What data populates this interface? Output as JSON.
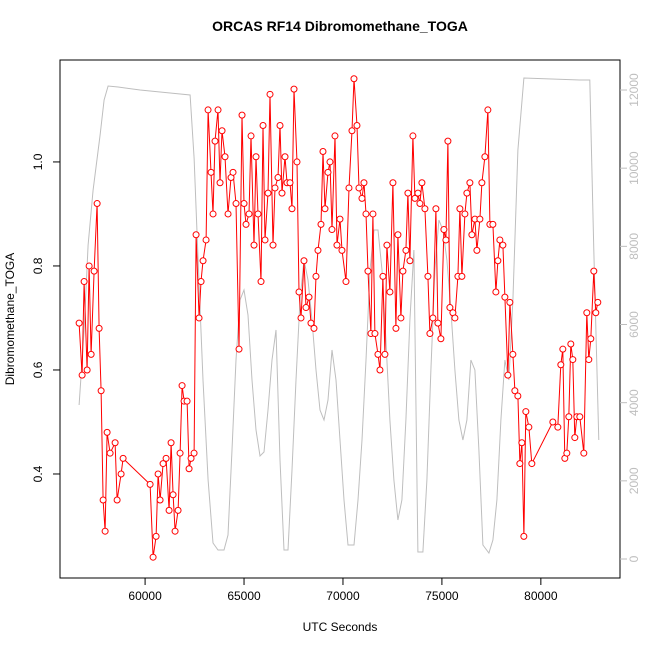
{
  "chart_data": {
    "type": "line",
    "title": "ORCAS RF14 Dibromomethane_TOGA",
    "xlabel": "UTC Seconds",
    "ylabel": "Dibromomethane_TOGA",
    "xlim": [
      55700,
      84000
    ],
    "xticks": [
      60000,
      65000,
      70000,
      75000,
      80000
    ],
    "ylim": [
      0.2,
      1.196
    ],
    "yticks": [
      0.4,
      0.6,
      0.8,
      {
        "value": 1,
        "label": "1.0"
      }
    ],
    "y2lim": [
      -486,
      12768
    ],
    "y2ticks": [
      0,
      2000,
      4000,
      6000,
      8000,
      10000,
      12000
    ],
    "series": [
      {
        "color": "#bebebe",
        "axis": "y2",
        "x": [
          56667,
          56919,
          57121,
          57374,
          57727,
          57929,
          58131,
          58636,
          59747,
          61263,
          62273,
          62475,
          62677,
          62929,
          63182,
          63434,
          63687,
          63990,
          64192,
          64394,
          64596,
          64798,
          65000,
          65202,
          65404,
          65606,
          65808,
          66010,
          66212,
          66414,
          66616,
          66818,
          67020,
          67222,
          67424,
          67626,
          67828,
          68030,
          68232,
          68434,
          68636,
          68838,
          69040,
          69242,
          69444,
          69646,
          69848,
          70051,
          70253,
          70556,
          70758,
          70960,
          71162,
          71364,
          71566,
          71768,
          71970,
          72172,
          72374,
          72576,
          72778,
          72980,
          73182,
          73384,
          73586,
          73788,
          74040,
          74242,
          74444,
          74646,
          74848,
          75051,
          75253,
          75455,
          75657,
          75859,
          76061,
          76263,
          76465,
          76667,
          76869,
          77071,
          77374,
          77576,
          77778,
          77980,
          78182,
          78384,
          78586,
          78838,
          79141,
          81970,
          82475,
          82677,
          82929
        ],
        "values": [
          3941,
          5860,
          8035,
          9442,
          10850,
          11745,
          12103,
          12078,
          12001,
          11924,
          11873,
          10261,
          7651,
          4580,
          2021,
          409,
          230,
          230,
          614,
          2789,
          5092,
          6627,
          6883,
          6244,
          4580,
          3301,
          2636,
          2738,
          3813,
          5092,
          5860,
          2533,
          230,
          230,
          2277,
          4580,
          6627,
          7651,
          7139,
          6116,
          4836,
          3813,
          3557,
          4069,
          5348,
          4580,
          3045,
          1510,
          358,
          358,
          1510,
          3045,
          5092,
          7395,
          8419,
          8419,
          7395,
          5604,
          3557,
          2021,
          998,
          1510,
          3557,
          6116,
          7907,
          179,
          179,
          2021,
          4836,
          7395,
          8675,
          8419,
          7651,
          6372,
          4836,
          3557,
          3045,
          3557,
          5092,
          4836,
          2789,
          358,
          154,
          486,
          1510,
          3557,
          5092,
          4580,
          6627,
          10466,
          12308,
          12257,
          12257,
          7907,
          3045
        ]
      },
      {
        "color": "#ff0000",
        "marker": "circle",
        "x": [
          56667,
          56818,
          56919,
          57071,
          57172,
          57273,
          57424,
          57576,
          57677,
          57778,
          57879,
          57980,
          58081,
          58232,
          58485,
          58586,
          58788,
          58889,
          60253,
          60404,
          60556,
          60657,
          60758,
          60909,
          61061,
          61212,
          61313,
          61414,
          61515,
          61667,
          61768,
          61869,
          61970,
          62121,
          62222,
          62323,
          62475,
          62576,
          62727,
          62828,
          62929,
          63081,
          63182,
          63333,
          63434,
          63535,
          63687,
          63788,
          63889,
          64040,
          64192,
          64343,
          64444,
          64596,
          64747,
          64899,
          65000,
          65101,
          65253,
          65354,
          65505,
          65606,
          65707,
          65859,
          65960,
          66061,
          66212,
          66313,
          66465,
          66566,
          66717,
          66818,
          66919,
          67071,
          67172,
          67323,
          67424,
          67525,
          67677,
          67778,
          67879,
          68030,
          68131,
          68283,
          68384,
          68535,
          68636,
          68737,
          68889,
          68990,
          69091,
          69242,
          69343,
          69444,
          69596,
          69697,
          69848,
          69949,
          70152,
          70303,
          70455,
          70556,
          70707,
          70808,
          70960,
          71061,
          71162,
          71263,
          71414,
          71515,
          71616,
          71768,
          71869,
          72020,
          72121,
          72222,
          72374,
          72525,
          72677,
          72778,
          72929,
          73030,
          73182,
          73283,
          73384,
          73535,
          73636,
          73788,
          73889,
          73990,
          74141,
          74293,
          74394,
          74545,
          74697,
          74798,
          74949,
          75101,
          75202,
          75303,
          75404,
          75556,
          75657,
          75808,
          75909,
          76010,
          76162,
          76263,
          76414,
          76515,
          76667,
          76768,
          76919,
          77020,
          77172,
          77323,
          77424,
          77576,
          77727,
          77828,
          77929,
          78081,
          78182,
          78333,
          78434,
          78586,
          78687,
          78838,
          78939,
          79040,
          79141,
          79242,
          79394,
          79545,
          80606,
          80859,
          81010,
          81111,
          81212,
          81313,
          81414,
          81515,
          81616,
          81717,
          81818,
          81970,
          82172,
          82323,
          82424,
          82525,
          82677,
          82778,
          82879
        ],
        "values": [
          0.69,
          0.59,
          0.77,
          0.6,
          0.8,
          0.63,
          0.79,
          0.92,
          0.68,
          0.56,
          0.35,
          0.29,
          0.48,
          0.44,
          0.46,
          0.35,
          0.4,
          0.43,
          0.38,
          0.24,
          0.28,
          0.4,
          0.35,
          0.42,
          0.43,
          0.33,
          0.46,
          0.36,
          0.29,
          0.33,
          0.44,
          0.57,
          0.54,
          0.54,
          0.41,
          0.43,
          0.44,
          0.86,
          0.7,
          0.77,
          0.81,
          0.85,
          1.1,
          0.98,
          0.9,
          1.04,
          1.1,
          0.96,
          1.06,
          1.01,
          0.9,
          0.97,
          0.98,
          0.92,
          0.64,
          1.09,
          0.92,
          0.88,
          0.9,
          1.05,
          0.84,
          1.01,
          0.9,
          0.77,
          1.07,
          0.85,
          0.94,
          1.13,
          0.84,
          0.95,
          0.97,
          1.07,
          0.94,
          1.01,
          0.96,
          0.96,
          0.91,
          1.14,
          1,
          0.75,
          0.7,
          0.81,
          0.72,
          0.74,
          0.69,
          0.68,
          0.78,
          0.83,
          0.88,
          1.02,
          0.91,
          0.98,
          1,
          0.87,
          1.05,
          0.84,
          0.89,
          0.83,
          0.77,
          0.95,
          1.06,
          1.16,
          1.07,
          0.95,
          0.93,
          0.96,
          0.9,
          0.79,
          0.67,
          0.9,
          0.67,
          0.63,
          0.6,
          0.78,
          0.63,
          0.84,
          0.75,
          0.96,
          0.68,
          0.86,
          0.7,
          0.79,
          0.83,
          0.94,
          0.81,
          1.05,
          0.93,
          0.94,
          0.92,
          0.96,
          0.91,
          0.78,
          0.67,
          0.7,
          0.91,
          0.69,
          0.66,
          0.87,
          0.85,
          1.04,
          0.72,
          0.71,
          0.7,
          0.78,
          0.91,
          0.78,
          0.9,
          0.94,
          0.96,
          0.86,
          0.89,
          0.83,
          0.89,
          0.96,
          1.01,
          1.1,
          0.88,
          0.88,
          0.75,
          0.81,
          0.85,
          0.84,
          0.74,
          0.59,
          0.73,
          0.63,
          0.56,
          0.55,
          0.42,
          0.46,
          0.28,
          0.52,
          0.49,
          0.42,
          0.5,
          0.49,
          0.61,
          0.64,
          0.43,
          0.44,
          0.51,
          0.65,
          0.62,
          0.47,
          0.51,
          0.51,
          0.44,
          0.71,
          0.62,
          0.66,
          0.79,
          0.71,
          0.73
        ]
      }
    ]
  }
}
